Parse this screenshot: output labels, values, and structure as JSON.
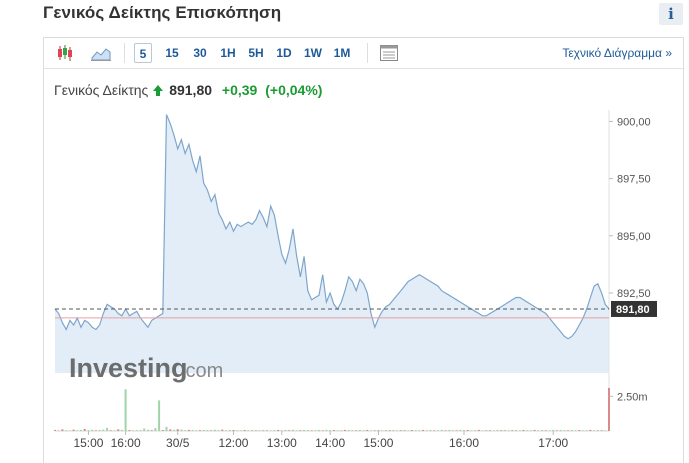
{
  "header": {
    "title": "Γενικός Δείκτης Επισκόπηση",
    "info_label": "i"
  },
  "toolbar": {
    "chart_type_icons": [
      "candlestick-icon",
      "area-chart-icon"
    ],
    "timeframes": [
      "5",
      "15",
      "30",
      "1H",
      "5H",
      "1D",
      "1W",
      "1M"
    ],
    "active_timeframe": "5",
    "layout_icon": "table-layout-icon",
    "tech_chart_link": "Τεχνικό Διάγραμμα »"
  },
  "quote": {
    "name": "Γενικός Δείκτης",
    "price": "891,80",
    "change": "+0,39",
    "change_pct": "(+0,04%)",
    "direction": "up"
  },
  "watermark": {
    "brand": "Investing",
    "suffix": ".com"
  },
  "colors": {
    "accent_link": "#1e5a99",
    "positive": "#1a9b33",
    "area_fill": "#dce8f5",
    "area_line": "#7ea6cc",
    "volume_up": "#9fd4a8",
    "volume_down": "#d98b8b",
    "reference_line": "#e8a0a0"
  },
  "chart_data": {
    "type": "area",
    "x_tick_labels": [
      "15:00",
      "16:00",
      "30/5",
      "12:00",
      "13:00",
      "14:00",
      "15:00",
      "16:00",
      "17:00"
    ],
    "y_tick_labels": [
      "900,00",
      "897,50",
      "895,00",
      "892,50"
    ],
    "ylim": [
      889.0,
      900.5
    ],
    "last_price_label": "891,80",
    "last_price": 891.8,
    "previous_close": 891.41,
    "volume_scale_label": "2.50m",
    "volume_ylim": [
      0,
      3.6
    ],
    "series": [
      {
        "x": [
          0,
          1,
          2,
          3,
          4,
          5,
          6,
          7,
          8,
          9,
          10,
          11,
          12,
          13,
          14,
          15,
          16,
          17,
          18,
          19,
          20,
          21,
          22,
          23,
          24,
          25,
          26,
          27,
          28,
          29,
          30,
          31,
          32,
          33,
          34,
          35,
          36,
          37,
          38,
          39,
          40,
          41,
          42,
          43,
          44,
          45,
          46,
          47,
          48,
          49,
          50,
          51,
          52,
          53,
          54,
          55,
          56,
          57,
          58,
          59,
          60,
          61,
          62,
          63,
          64,
          65,
          66,
          67,
          68,
          69,
          70,
          71,
          72,
          73,
          74,
          75,
          76,
          77,
          78,
          79,
          80,
          81,
          82,
          83,
          84,
          85,
          86,
          87,
          88,
          89,
          90,
          91,
          92,
          93,
          94,
          95,
          96,
          97,
          98,
          99,
          100,
          101,
          102,
          103,
          104,
          105,
          106,
          107,
          108,
          109,
          110,
          111,
          112,
          113,
          114,
          115,
          116,
          117,
          118,
          119,
          120,
          121,
          122,
          123,
          124,
          125,
          126,
          127,
          128,
          129,
          130,
          131,
          132,
          133,
          134,
          135,
          136,
          137,
          138,
          139,
          140,
          141,
          142,
          143,
          144,
          145,
          146,
          147,
          148,
          149
        ],
        "values": [
          891.8,
          891.6,
          891.2,
          890.9,
          891.3,
          891.1,
          891.4,
          891.0,
          891.3,
          891.2,
          891.0,
          890.9,
          891.1,
          891.6,
          892.0,
          891.9,
          891.8,
          891.6,
          891.5,
          891.8,
          891.5,
          891.6,
          891.7,
          891.4,
          891.2,
          891.0,
          891.3,
          891.4,
          891.5,
          891.6,
          900.3,
          899.9,
          899.4,
          898.8,
          899.2,
          898.6,
          899.0,
          898.3,
          897.8,
          898.5,
          897.3,
          897.0,
          896.5,
          896.8,
          896.0,
          895.7,
          895.3,
          895.6,
          895.2,
          895.5,
          895.4,
          895.5,
          895.6,
          895.5,
          895.7,
          896.1,
          895.8,
          895.4,
          896.3,
          895.9,
          895.0,
          894.2,
          893.8,
          894.4,
          895.3,
          894.1,
          893.2,
          894.1,
          892.6,
          892.2,
          892.3,
          892.4,
          893.3,
          892.1,
          892.5,
          892.0,
          891.8,
          892.1,
          892.6,
          893.2,
          893.0,
          892.6,
          893.1,
          892.9,
          892.5,
          891.6,
          891.0,
          891.4,
          891.7,
          891.9,
          892.0,
          892.2,
          892.4,
          892.6,
          892.8,
          893.0,
          893.1,
          893.2,
          893.3,
          893.2,
          893.1,
          893.0,
          892.9,
          892.8,
          892.6,
          892.5,
          892.4,
          892.3,
          892.2,
          892.1,
          892.0,
          891.9,
          891.8,
          891.7,
          891.6,
          891.5,
          891.5,
          891.6,
          891.7,
          891.8,
          891.9,
          892.0,
          892.1,
          892.2,
          892.3,
          892.3,
          892.2,
          892.1,
          892.0,
          891.9,
          891.8,
          891.7,
          891.6,
          891.4,
          891.2,
          891.0,
          890.8,
          890.6,
          890.5,
          890.6,
          890.8,
          891.1,
          891.4,
          891.8,
          892.3,
          892.8,
          892.9,
          892.5,
          892.0,
          891.8
        ]
      }
    ],
    "volume": [
      0.08,
      0.05,
      0.12,
      0.06,
      0.04,
      0.1,
      0.05,
      0.07,
      0.15,
      0.06,
      0.09,
      0.05,
      0.08,
      0.1,
      0.22,
      0.06,
      0.05,
      0.12,
      0.08,
      3.0,
      0.07,
      0.05,
      0.06,
      0.04,
      0.18,
      0.09,
      0.06,
      0.2,
      2.2,
      0.07,
      0.3,
      0.12,
      0.08,
      0.14,
      0.1,
      0.06,
      0.09,
      0.07,
      0.05,
      0.06,
      0.08,
      0.07,
      0.05,
      0.09,
      0.06,
      0.1,
      0.05,
      0.08,
      0.07,
      0.06,
      0.05,
      0.07,
      0.06,
      0.08,
      0.05,
      0.06,
      0.07,
      0.05,
      0.04,
      0.06,
      0.08,
      0.05,
      0.07,
      0.06,
      0.09,
      0.05,
      0.06,
      0.08,
      0.07,
      0.05,
      0.06,
      0.07,
      0.05,
      0.08,
      0.06,
      0.07,
      0.05,
      0.06,
      0.08,
      0.07,
      0.06,
      0.05,
      0.07,
      0.06,
      0.08,
      0.05,
      0.07,
      0.06,
      0.05,
      0.08,
      0.06,
      0.07,
      0.05,
      0.06,
      0.08,
      0.05,
      0.07,
      0.06,
      0.05,
      0.08,
      0.06,
      0.07,
      0.05,
      0.06,
      0.08,
      0.05,
      0.07,
      0.06,
      0.05,
      0.08,
      0.06,
      0.07,
      0.05,
      0.06,
      0.08,
      0.05,
      0.07,
      0.06,
      0.05,
      0.08,
      0.06,
      0.07,
      0.05,
      0.06,
      0.08,
      0.05,
      0.07,
      0.06,
      0.05,
      0.08,
      0.06,
      0.07,
      0.05,
      0.06,
      0.08,
      0.05,
      0.07,
      0.06,
      0.05,
      0.08,
      0.06,
      0.07,
      0.05,
      0.06,
      0.08,
      0.05,
      0.07,
      0.06,
      0.05,
      3.1
    ],
    "volume_down_idx": [
      0,
      2,
      5,
      8,
      11,
      15,
      17,
      20,
      23,
      26,
      29,
      31,
      33,
      36,
      39,
      42,
      45,
      48,
      51,
      54,
      57,
      60,
      63,
      66,
      69,
      72,
      75,
      78,
      81,
      84,
      87,
      90,
      93,
      96,
      99,
      102,
      105,
      108,
      111,
      114,
      117,
      120,
      123,
      126,
      129,
      132,
      135,
      138,
      141,
      144,
      147,
      149
    ]
  }
}
